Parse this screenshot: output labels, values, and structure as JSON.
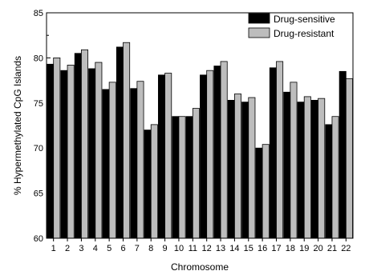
{
  "chart_data": {
    "type": "bar",
    "xlabel": "Chromosome",
    "ylabel": "% Hypermethylated CpG Islands",
    "ylim": [
      60,
      85
    ],
    "yticks": [
      60,
      65,
      70,
      75,
      80,
      85
    ],
    "grid": false,
    "legend_position": "top-right",
    "categories": [
      "1",
      "2",
      "3",
      "4",
      "5",
      "6",
      "7",
      "8",
      "9",
      "10",
      "11",
      "12",
      "13",
      "14",
      "15",
      "16",
      "17",
      "18",
      "19",
      "20",
      "21",
      "22"
    ],
    "series": [
      {
        "name": "Drug-sensitive",
        "color": "#000000",
        "values": [
          79.3,
          78.6,
          80.5,
          78.8,
          76.5,
          81.2,
          76.6,
          72.0,
          78.1,
          73.5,
          73.5,
          78.1,
          79.1,
          75.3,
          75.1,
          70.0,
          78.9,
          76.2,
          75.1,
          75.3,
          72.6,
          78.5
        ]
      },
      {
        "name": "Drug-resistant",
        "color": "#bdbdbd",
        "values": [
          80.0,
          79.2,
          80.9,
          79.5,
          77.3,
          81.7,
          77.4,
          72.6,
          78.3,
          73.5,
          74.4,
          78.6,
          79.6,
          76.0,
          75.6,
          70.4,
          79.6,
          77.3,
          75.7,
          75.5,
          73.5,
          77.7
        ]
      }
    ]
  }
}
